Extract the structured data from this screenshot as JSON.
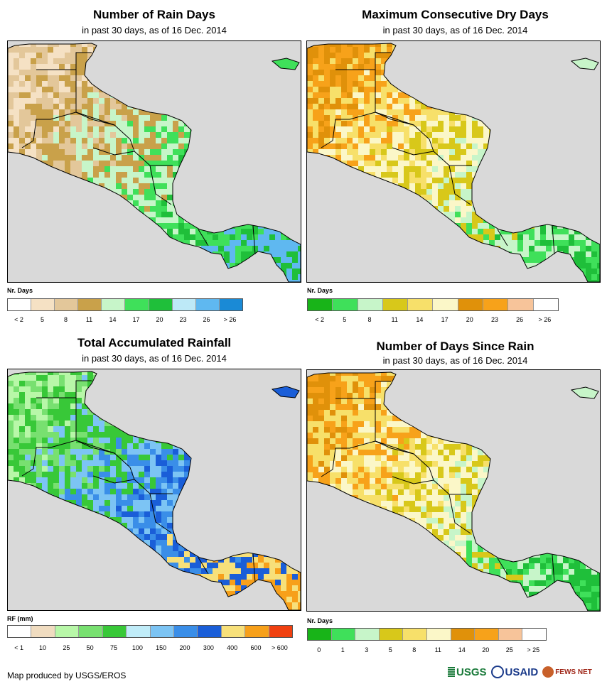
{
  "panels": [
    {
      "id": "rain_days",
      "title": "Number of Rain Days",
      "subtitle": "in past 30 days, as of 16 Dec. 2014",
      "legend_title": "Nr. Days",
      "legend_colors": [
        "#ffffff",
        "#f5e1c4",
        "#e3c79a",
        "#c9a14a",
        "#c7f5c9",
        "#3fe05a",
        "#1fbf3a",
        "#bde9f7",
        "#5fb8f0",
        "#1a8ad6"
      ],
      "legend_ticks": [
        "< 2",
        "5",
        "8",
        "11",
        "14",
        "17",
        "20",
        "23",
        "26",
        "> 26"
      ]
    },
    {
      "id": "dry_days",
      "title": "Maximum Consecutive Dry Days",
      "subtitle": "in past 30 days, as of 16 Dec. 2014",
      "legend_title": "Nr. Days",
      "legend_colors": [
        "#18b418",
        "#3fe05a",
        "#c7f5c9",
        "#d8c81a",
        "#f7e06a",
        "#fbf7c8",
        "#e0910a",
        "#f7a21a",
        "#f7c49a",
        "#ffffff"
      ],
      "legend_ticks": [
        "< 2",
        "5",
        "8",
        "11",
        "14",
        "17",
        "20",
        "23",
        "26",
        "> 26"
      ]
    },
    {
      "id": "rainfall",
      "title": "Total Accumulated Rainfall",
      "subtitle": "in past 30 days, as of 16 Dec. 2014",
      "legend_title": "RF (mm)",
      "legend_colors": [
        "#ffffff",
        "#f0dcc0",
        "#b8f7a8",
        "#78e070",
        "#38c838",
        "#c0ecf8",
        "#7cc4f4",
        "#3a8ee8",
        "#1a5ed8",
        "#f7e07a",
        "#f7a01a",
        "#f04010"
      ],
      "legend_ticks": [
        "< 1",
        "10",
        "25",
        "50",
        "75",
        "100",
        "150",
        "200",
        "300",
        "400",
        "600",
        "> 600"
      ]
    },
    {
      "id": "days_since_rain",
      "title": "Number of Days Since Rain",
      "subtitle": "in past 30 days, as of 16 Dec. 2014",
      "legend_title": "Nr. Days",
      "legend_colors": [
        "#18b418",
        "#3fe05a",
        "#c7f5c9",
        "#d8c81a",
        "#f7e06a",
        "#fbf7c8",
        "#e0910a",
        "#f7a21a",
        "#f7c49a",
        "#ffffff"
      ],
      "legend_ticks": [
        "0",
        "1",
        "3",
        "5",
        "8",
        "11",
        "14",
        "20",
        "25",
        "> 25"
      ]
    }
  ],
  "footer": "Map produced by USGS/EROS",
  "logos": {
    "usgs": "USGS",
    "usaid": "USAID",
    "fews": "FEWS NET"
  }
}
